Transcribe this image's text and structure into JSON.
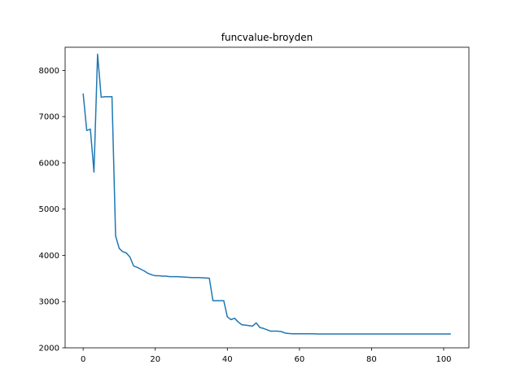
{
  "chart_data": {
    "type": "line",
    "title": "funcvalue-broyden",
    "xlabel": "",
    "ylabel": "",
    "xlim": [
      -5,
      107
    ],
    "ylim": [
      2000,
      8500
    ],
    "grid": false,
    "legend": "none",
    "xticks": [
      0,
      20,
      40,
      60,
      80,
      100
    ],
    "xtick_labels": [
      "0",
      "20",
      "40",
      "60",
      "80",
      "100"
    ],
    "yticks": [
      2000,
      3000,
      4000,
      5000,
      6000,
      7000,
      8000
    ],
    "ytick_labels": [
      "2000",
      "3000",
      "4000",
      "5000",
      "6000",
      "7000",
      "8000"
    ],
    "line_color": "#1f77b4",
    "series": [
      {
        "name": "funcvalue",
        "x": [
          0,
          1,
          2,
          3,
          4,
          5,
          6,
          7,
          8,
          9,
          10,
          11,
          12,
          13,
          14,
          15,
          16,
          17,
          18,
          19,
          20,
          21,
          22,
          23,
          24,
          25,
          26,
          27,
          28,
          29,
          30,
          31,
          32,
          33,
          34,
          35,
          36,
          37,
          38,
          39,
          40,
          41,
          42,
          43,
          44,
          45,
          46,
          47,
          48,
          49,
          50,
          51,
          52,
          53,
          54,
          55,
          56,
          57,
          58,
          59,
          60,
          61,
          62,
          63,
          64,
          65,
          66,
          67,
          68,
          69,
          70,
          71,
          72,
          73,
          74,
          75,
          76,
          77,
          78,
          79,
          80,
          81,
          82,
          83,
          84,
          85,
          86,
          87,
          88,
          89,
          90,
          91,
          92,
          93,
          94,
          95,
          96,
          97,
          98,
          99,
          100,
          101,
          102
        ],
        "values": [
          7500,
          6700,
          6730,
          5800,
          8350,
          7420,
          7430,
          7430,
          7430,
          4420,
          4150,
          4080,
          4050,
          3960,
          3770,
          3740,
          3700,
          3660,
          3610,
          3580,
          3560,
          3560,
          3550,
          3550,
          3540,
          3540,
          3540,
          3535,
          3530,
          3525,
          3520,
          3520,
          3520,
          3515,
          3510,
          3505,
          3020,
          3020,
          3020,
          3020,
          2670,
          2610,
          2640,
          2560,
          2500,
          2490,
          2480,
          2470,
          2540,
          2440,
          2420,
          2390,
          2360,
          2360,
          2360,
          2350,
          2320,
          2310,
          2305,
          2305,
          2305,
          2305,
          2305,
          2305,
          2305,
          2300,
          2300,
          2300,
          2300,
          2300,
          2300,
          2300,
          2300,
          2300,
          2300,
          2300,
          2300,
          2300,
          2300,
          2300,
          2300,
          2300,
          2300,
          2300,
          2300,
          2300,
          2300,
          2300,
          2300,
          2300,
          2300,
          2300,
          2300,
          2300,
          2300,
          2300,
          2300,
          2300,
          2300,
          2300,
          2300,
          2300,
          2300
        ]
      }
    ]
  }
}
